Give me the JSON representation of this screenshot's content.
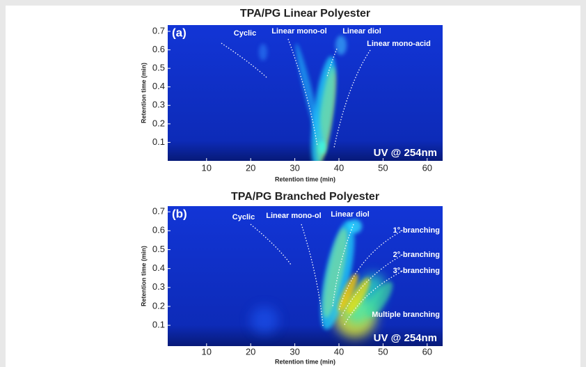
{
  "chart_data": [
    {
      "type": "heatmap",
      "title": "TPA/PG Linear Polyester",
      "panel_label": "(a)",
      "detector": "UV @ 254nm",
      "x_label": "Retention time (min)",
      "y_label": "Retention time (min)",
      "xlim": [
        1.2,
        63.5
      ],
      "ylim": [
        0,
        0.734
      ],
      "xticks": [
        10,
        20,
        30,
        40,
        50,
        60
      ],
      "yticks": [
        0.1,
        0.2,
        0.3,
        0.4,
        0.5,
        0.6,
        0.7
      ],
      "annotations": [
        "Cyclic",
        "Linear mono-ol",
        "Linear diol",
        "Linear mono-acid"
      ]
    },
    {
      "type": "heatmap",
      "title": "TPA/PG Branched Polyester",
      "panel_label": "(b)",
      "detector": "UV @ 254nm",
      "x_label": "Retention time (min)",
      "y_label": "Retention time (min)",
      "xlim": [
        1.2,
        63.5
      ],
      "ylim": [
        -0.01,
        0.73
      ],
      "xticks": [
        10,
        20,
        30,
        40,
        50,
        60
      ],
      "yticks": [
        0.1,
        0.2,
        0.3,
        0.4,
        0.5,
        0.6,
        0.7
      ],
      "annotations": [
        "Cyclic",
        "Linear mono-ol",
        "Linear diol",
        "1°-branching",
        "2°-branching",
        "3°-branching",
        "Multiple branching"
      ]
    }
  ]
}
